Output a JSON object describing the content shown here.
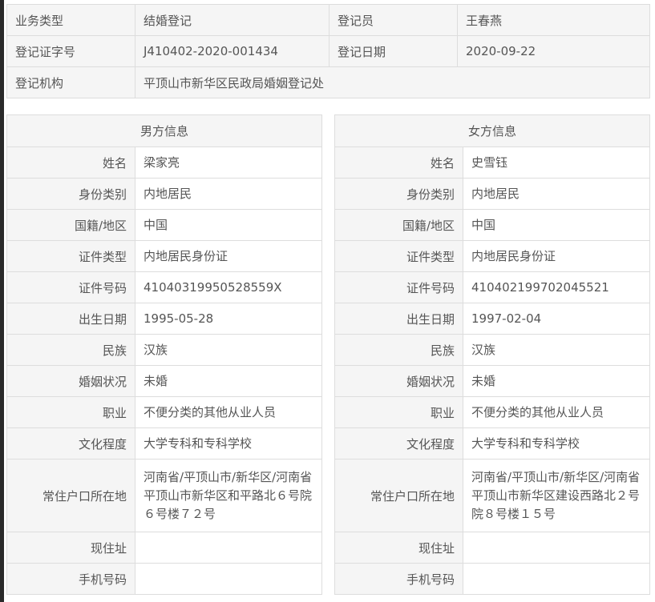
{
  "summary": {
    "business_type_label": "业务类型",
    "business_type": "结婚登记",
    "registrar_label": "登记员",
    "registrar": "王春燕",
    "cert_no_label": "登记证字号",
    "cert_no": "J410402-2020-001434",
    "date_label": "登记日期",
    "date": "2020-09-22",
    "office_label": "登记机构",
    "office": "平顶山市新华区民政局婚姻登记处"
  },
  "male": {
    "title": "男方信息",
    "rows": [
      {
        "label": "姓名",
        "value": "梁家亮"
      },
      {
        "label": "身份类别",
        "value": "内地居民"
      },
      {
        "label": "国籍/地区",
        "value": "中国"
      },
      {
        "label": "证件类型",
        "value": "内地居民身份证"
      },
      {
        "label": "证件号码",
        "value": "41040319950528559X"
      },
      {
        "label": "出生日期",
        "value": "1995-05-28"
      },
      {
        "label": "民族",
        "value": "汉族"
      },
      {
        "label": "婚姻状况",
        "value": "未婚"
      },
      {
        "label": "职业",
        "value": "不便分类的其他从业人员"
      },
      {
        "label": "文化程度",
        "value": "大学专科和专科学校"
      },
      {
        "label": "常住户口所在地",
        "value": "河南省/平顶山市/新华区/河南省平顶山市新华区和平路北６号院６号楼７２号"
      },
      {
        "label": "现住址",
        "value": ""
      },
      {
        "label": "手机号码",
        "value": ""
      }
    ]
  },
  "female": {
    "title": "女方信息",
    "rows": [
      {
        "label": "姓名",
        "value": "史雪钰"
      },
      {
        "label": "身份类别",
        "value": "内地居民"
      },
      {
        "label": "国籍/地区",
        "value": "中国"
      },
      {
        "label": "证件类型",
        "value": "内地居民身份证"
      },
      {
        "label": "证件号码",
        "value": "410402199702045521"
      },
      {
        "label": "出生日期",
        "value": "1997-02-04"
      },
      {
        "label": "民族",
        "value": "汉族"
      },
      {
        "label": "婚姻状况",
        "value": "未婚"
      },
      {
        "label": "职业",
        "value": "不便分类的其他从业人员"
      },
      {
        "label": "文化程度",
        "value": "大学专科和专科学校"
      },
      {
        "label": "常住户口所在地",
        "value": "河南省/平顶山市/新华区/河南省平顶山市新华区建设西路北２号院８号楼１５号"
      },
      {
        "label": "现住址",
        "value": ""
      },
      {
        "label": "手机号码",
        "value": ""
      }
    ]
  }
}
